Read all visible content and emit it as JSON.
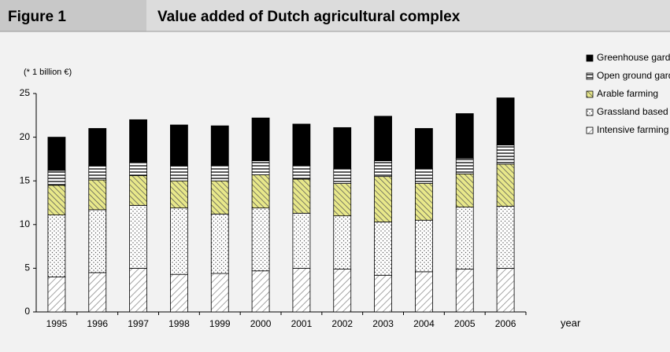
{
  "header": {
    "figure": "Figure 1",
    "title": "Value added of Dutch agricultural complex"
  },
  "chart_data": {
    "type": "stacked_bar",
    "unit_note": "(* 1 billion €)",
    "x_label": "year",
    "categories": [
      "1995",
      "1996",
      "1997",
      "1998",
      "1999",
      "2000",
      "2001",
      "2002",
      "2003",
      "2004",
      "2005",
      "2006"
    ],
    "series": [
      {
        "name": "Intensive farming",
        "color": "#bfbfbf",
        "values": [
          4.0,
          4.5,
          5.0,
          4.3,
          4.4,
          4.7,
          5.0,
          4.9,
          4.2,
          4.6,
          4.9,
          5.0
        ]
      },
      {
        "name": "Grassland based livestock",
        "color": "#ffffff",
        "values": [
          7.1,
          7.2,
          7.2,
          7.6,
          6.8,
          7.2,
          6.3,
          6.1,
          6.1,
          5.9,
          7.1,
          7.1
        ]
      },
      {
        "name": "Arable farming",
        "color": "#e6e68c",
        "values": [
          3.4,
          3.4,
          3.4,
          3.1,
          3.8,
          3.8,
          3.9,
          3.7,
          5.2,
          4.2,
          3.8,
          4.8
        ]
      },
      {
        "name": "Open ground gardening",
        "color": "#ffffff",
        "values": [
          1.7,
          1.6,
          1.5,
          1.7,
          1.8,
          1.6,
          1.6,
          1.7,
          1.8,
          1.7,
          1.8,
          2.2
        ]
      },
      {
        "name": "Greenhouse gardening",
        "color": "#000000",
        "values": [
          3.8,
          4.3,
          4.9,
          4.7,
          4.5,
          4.9,
          4.7,
          4.7,
          5.1,
          4.6,
          5.1,
          5.4
        ]
      }
    ],
    "ylim": [
      0,
      25
    ],
    "yticks": [
      0,
      5,
      10,
      15,
      20,
      25
    ]
  }
}
